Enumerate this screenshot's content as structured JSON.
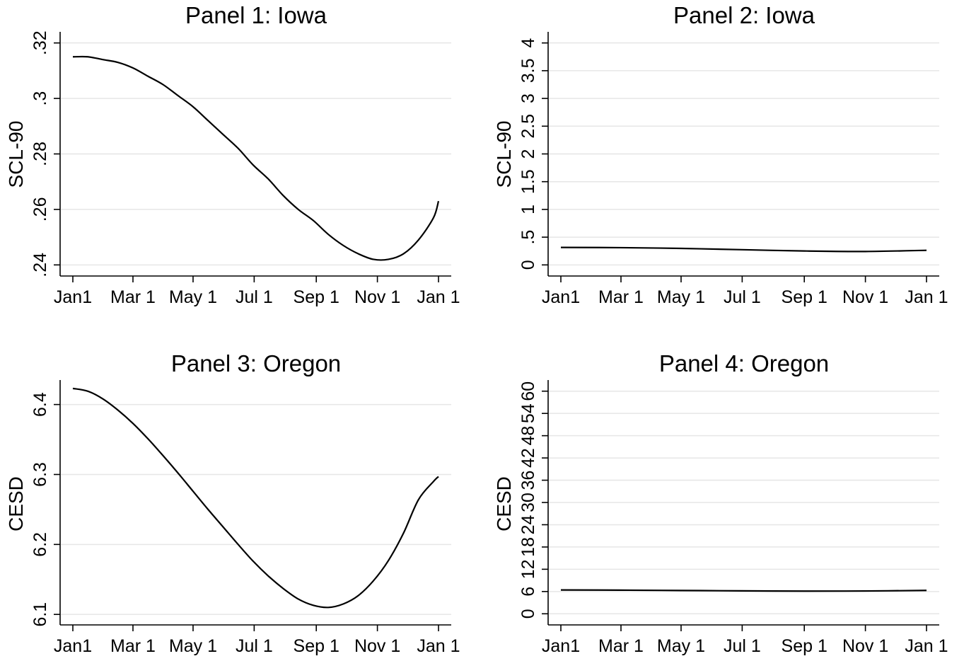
{
  "chart_data": [
    {
      "type": "line",
      "title": "Panel 1: Iowa",
      "xlabel": "",
      "ylabel": "SCL-90",
      "x_ticks": [
        "Jan1",
        "Mar 1",
        "May 1",
        "Jul 1",
        "Sep 1",
        "Nov 1",
        "Jan 1"
      ],
      "x_tick_days": [
        0,
        60,
        120,
        181,
        243,
        304,
        365
      ],
      "xlim": [
        0,
        365
      ],
      "y_ticks": [
        ".24",
        ".26",
        ".28",
        ".3",
        ".32"
      ],
      "y_tick_values": [
        0.24,
        0.26,
        0.28,
        0.3,
        0.32
      ],
      "ylim": [
        0.236,
        0.324
      ],
      "grid": true,
      "series": [
        {
          "x": [
            "Jan 1",
            "Jan 16",
            "Jan 31",
            "Feb 15",
            "Mar 2",
            "Mar 17",
            "Apr 1",
            "Apr 16",
            "May 1",
            "May 16",
            "May 31",
            "Jun 15",
            "Jun 30",
            "Jul 15",
            "Jul 30",
            "Aug 14",
            "Aug 29",
            "Sep 13",
            "Sep 28",
            "Oct 13",
            "Oct 28",
            "Nov 12",
            "Nov 27",
            "Dec 12",
            "Dec 27",
            "Jan 1"
          ],
          "values": [
            0.315,
            0.315,
            0.314,
            0.313,
            0.311,
            0.308,
            0.305,
            0.301,
            0.297,
            0.292,
            0.287,
            0.282,
            0.276,
            0.271,
            0.265,
            0.26,
            0.256,
            0.251,
            0.247,
            0.244,
            0.242,
            0.242,
            0.244,
            0.249,
            0.257,
            0.263
          ]
        }
      ]
    },
    {
      "type": "line",
      "title": "Panel 2: Iowa",
      "xlabel": "",
      "ylabel": "SCL-90",
      "x_ticks": [
        "Jan1",
        "Mar 1",
        "May 1",
        "Jul 1",
        "Sep 1",
        "Nov 1",
        "Jan 1"
      ],
      "x_tick_days": [
        0,
        60,
        120,
        181,
        243,
        304,
        365
      ],
      "xlim": [
        0,
        365
      ],
      "y_ticks": [
        "0",
        ".5",
        "1",
        "1.5",
        "2",
        "2.5",
        "3",
        "3.5",
        "4"
      ],
      "y_tick_values": [
        0,
        0.5,
        1,
        1.5,
        2,
        2.5,
        3,
        3.5,
        4
      ],
      "ylim": [
        -0.2,
        4.2
      ],
      "grid": true,
      "series": [
        {
          "x": [
            "Jan 1",
            "Mar 1",
            "May 1",
            "Jul 1",
            "Sep 1",
            "Nov 1",
            "Jan 1"
          ],
          "values": [
            0.315,
            0.311,
            0.297,
            0.274,
            0.251,
            0.242,
            0.263
          ]
        }
      ]
    },
    {
      "type": "line",
      "title": "Panel 3: Oregon",
      "xlabel": "",
      "ylabel": "CESD",
      "x_ticks": [
        "Jan1",
        "Mar 1",
        "May 1",
        "Jul 1",
        "Sep 1",
        "Nov 1",
        "Jan 1"
      ],
      "x_tick_days": [
        0,
        60,
        120,
        181,
        243,
        304,
        365
      ],
      "xlim": [
        0,
        365
      ],
      "y_ticks": [
        "6.1",
        "6.2",
        "6.3",
        "6.4"
      ],
      "y_tick_values": [
        6.1,
        6.2,
        6.3,
        6.4
      ],
      "ylim": [
        6.085,
        6.435
      ],
      "grid": true,
      "series": [
        {
          "x": [
            "Jan 1",
            "Jan 16",
            "Jan 31",
            "Feb 15",
            "Mar 2",
            "Mar 17",
            "Apr 1",
            "Apr 16",
            "May 1",
            "May 16",
            "May 31",
            "Jun 15",
            "Jun 30",
            "Jul 15",
            "Jul 30",
            "Aug 14",
            "Aug 29",
            "Sep 13",
            "Sep 28",
            "Oct 13",
            "Oct 28",
            "Nov 12",
            "Nov 27",
            "Dec 12",
            "Dec 27",
            "Jan 1"
          ],
          "values": [
            6.423,
            6.419,
            6.408,
            6.392,
            6.373,
            6.351,
            6.327,
            6.302,
            6.276,
            6.25,
            6.225,
            6.2,
            6.176,
            6.155,
            6.137,
            6.122,
            6.113,
            6.11,
            6.115,
            6.127,
            6.148,
            6.177,
            6.216,
            6.264,
            6.29,
            6.297
          ]
        }
      ]
    },
    {
      "type": "line",
      "title": "Panel 4: Oregon",
      "xlabel": "",
      "ylabel": "CESD",
      "x_ticks": [
        "Jan1",
        "Mar 1",
        "May 1",
        "Jul 1",
        "Sep 1",
        "Nov 1",
        "Jan 1"
      ],
      "x_tick_days": [
        0,
        60,
        120,
        181,
        243,
        304,
        365
      ],
      "xlim": [
        0,
        365
      ],
      "y_ticks": [
        "0",
        "6",
        "12",
        "18",
        "24",
        "30",
        "36",
        "42",
        "48",
        "54",
        "60"
      ],
      "y_tick_values": [
        0,
        6,
        12,
        18,
        24,
        30,
        36,
        42,
        48,
        54,
        60
      ],
      "ylim": [
        -3,
        63
      ],
      "grid": true,
      "series": [
        {
          "x": [
            "Jan 1",
            "Mar 1",
            "May 1",
            "Jul 1",
            "Sep 1",
            "Nov 1",
            "Jan 1"
          ],
          "values": [
            6.42,
            6.37,
            6.28,
            6.18,
            6.11,
            6.14,
            6.3
          ]
        }
      ]
    }
  ]
}
